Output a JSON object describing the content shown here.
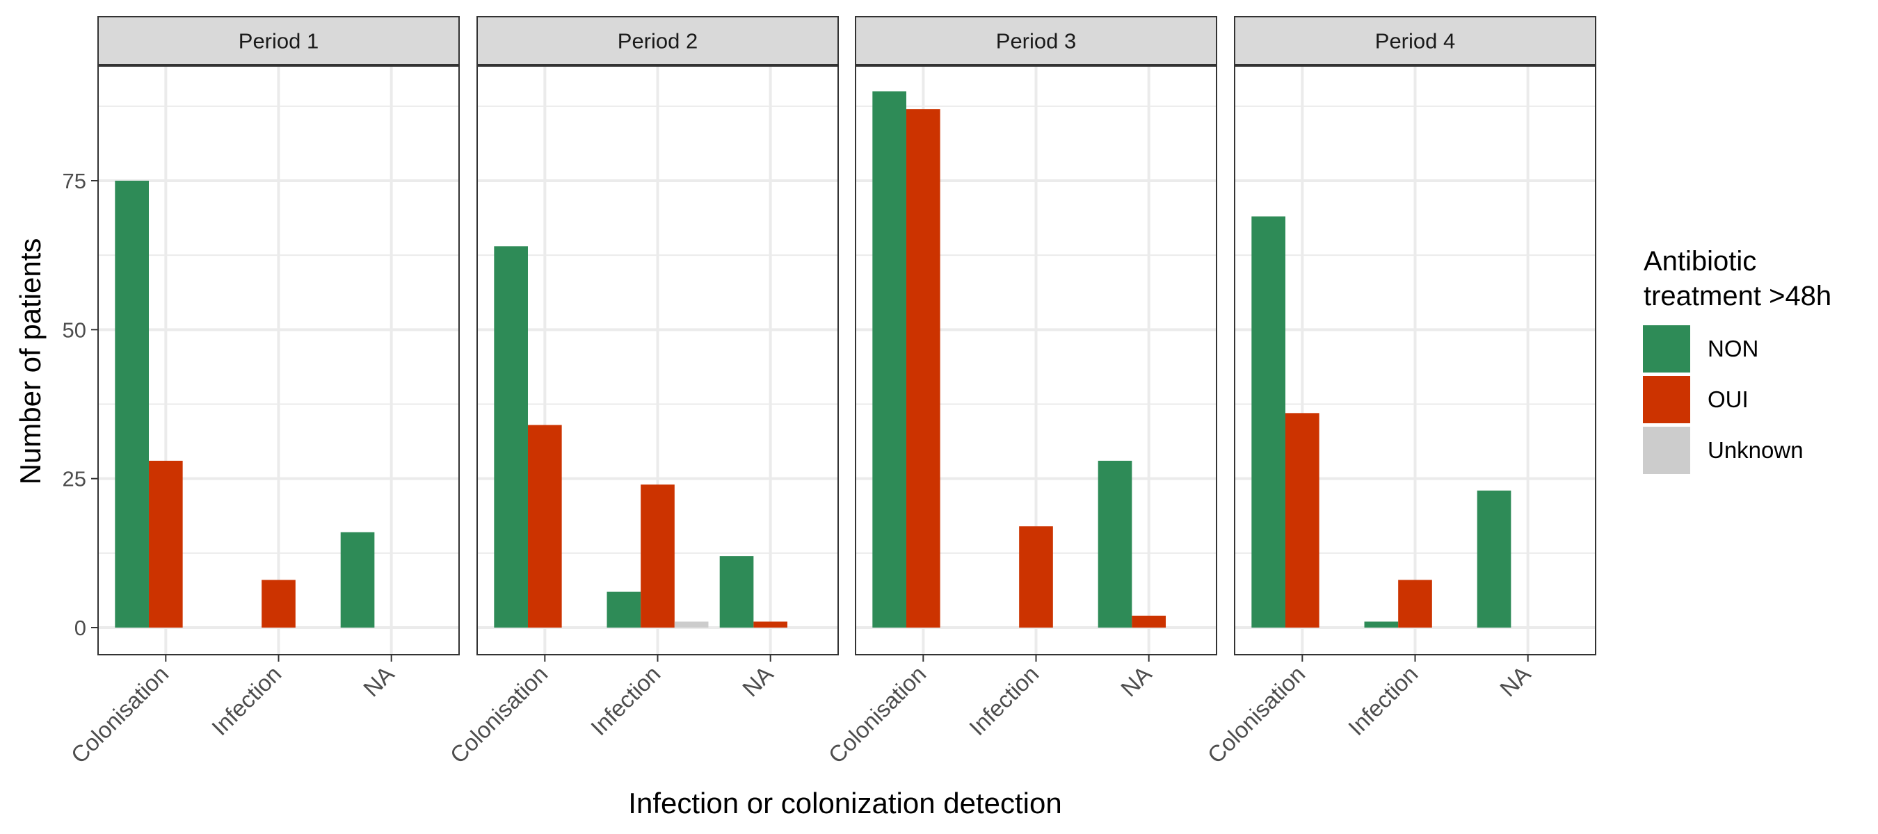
{
  "chart_data": {
    "type": "bar",
    "x_label": "Infection or colonization detection",
    "y_label": "Number of patients",
    "categories": [
      "Colonisation",
      "Infection",
      "NA"
    ],
    "y_range": [
      0,
      95
    ],
    "y_ticks": [
      0,
      25,
      50,
      75
    ],
    "grid": true,
    "legend_position": "right",
    "legend": {
      "title_line1": "Antibiotic",
      "title_line2": "treatment >48h"
    },
    "series": [
      {
        "name": "NON",
        "color": "#2E8B57"
      },
      {
        "name": "OUI",
        "color": "#CC3300"
      },
      {
        "name": "Unknown",
        "color": "#CCCCCC"
      }
    ],
    "panels": [
      {
        "title": "Period 1",
        "values": {
          "Colonisation": [
            75,
            28,
            0
          ],
          "Infection": [
            0,
            8,
            0
          ],
          "NA": [
            16,
            0,
            0
          ]
        }
      },
      {
        "title": "Period 2",
        "values": {
          "Colonisation": [
            64,
            34,
            0
          ],
          "Infection": [
            6,
            24,
            1
          ],
          "NA": [
            12,
            1,
            0
          ]
        }
      },
      {
        "title": "Period 3",
        "values": {
          "Colonisation": [
            90,
            87,
            0
          ],
          "Infection": [
            0,
            17,
            0
          ],
          "NA": [
            28,
            2,
            0
          ]
        }
      },
      {
        "title": "Period 4",
        "values": {
          "Colonisation": [
            69,
            36,
            0
          ],
          "Infection": [
            1,
            8,
            0
          ],
          "NA": [
            23,
            0,
            0
          ]
        }
      }
    ]
  }
}
